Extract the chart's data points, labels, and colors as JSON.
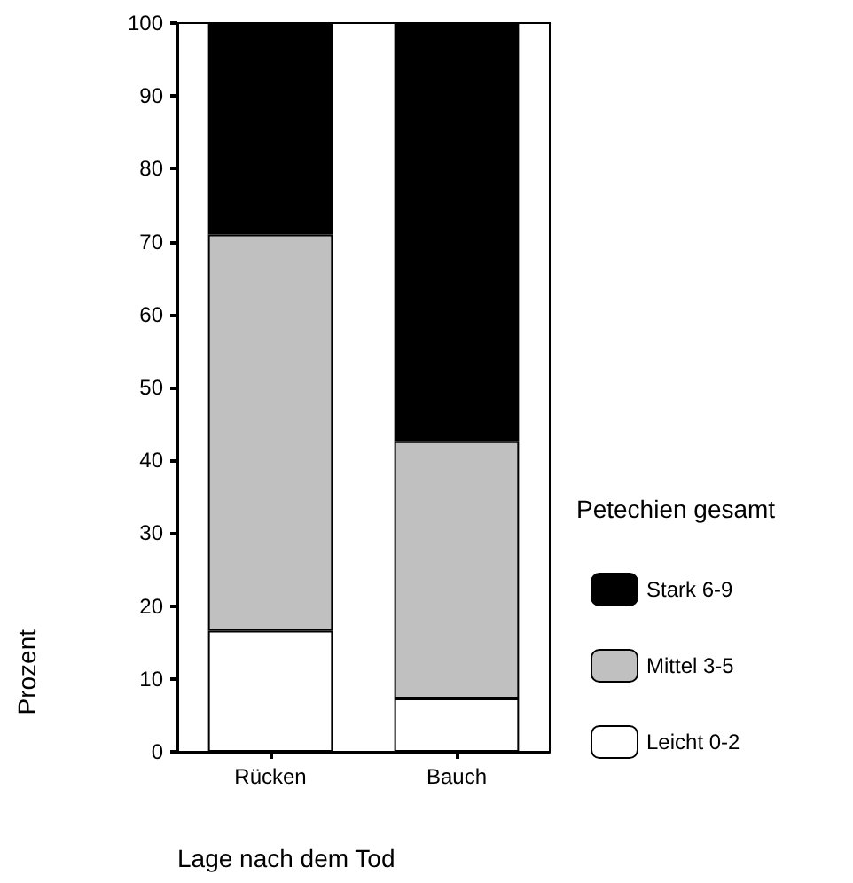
{
  "chart_data": {
    "type": "bar",
    "stacked": true,
    "xlabel": "Lage nach dem Tod",
    "ylabel": "Prozent",
    "legend_title": "Petechien gesamt",
    "legend": "right",
    "categories": [
      "Rücken",
      "Bauch"
    ],
    "series": [
      {
        "name": "Leicht 0-2",
        "color": "#ffffff",
        "values": [
          16.6,
          7.3
        ]
      },
      {
        "name": "Mittel 3-5",
        "color": "#c0c0c0",
        "values": [
          54.4,
          35.3
        ]
      },
      {
        "name": "Stark 6-9",
        "color": "#000000",
        "values": [
          29.0,
          57.4
        ]
      }
    ],
    "ylim": [
      0,
      100
    ],
    "yticks": [
      0,
      10,
      20,
      30,
      40,
      50,
      60,
      70,
      80,
      90,
      100
    ],
    "grid": false
  }
}
